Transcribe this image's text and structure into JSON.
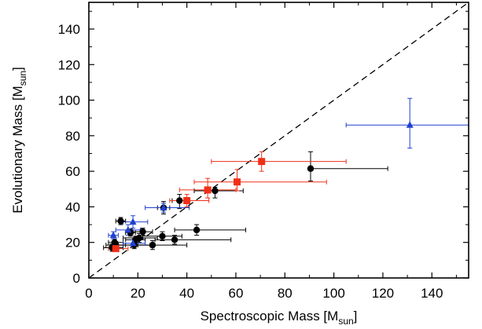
{
  "chart_data": {
    "type": "scatter",
    "xlabel": {
      "main": "Spectroscopic Mass [M",
      "sub": "sun",
      "end": "]"
    },
    "ylabel": {
      "main": "Evolutionary Mass [M",
      "sub": "sun",
      "end": "]"
    },
    "xlim": [
      0,
      155
    ],
    "ylim": [
      0,
      155
    ],
    "xticks": [
      0,
      20,
      40,
      60,
      80,
      100,
      120,
      140
    ],
    "yticks": [
      0,
      20,
      40,
      60,
      80,
      100,
      120,
      140
    ],
    "grid": false,
    "reference_line": {
      "style": "dashed",
      "color": "#000000",
      "from": [
        0,
        0
      ],
      "to": [
        155,
        155
      ]
    },
    "series": [
      {
        "marker": "circle",
        "color": "#000000",
        "points": [
          {
            "x": 90.5,
            "y": 61.5,
            "xerr": [
              90.5,
              122
            ],
            "yerr": [
              54.5,
              71
            ]
          },
          {
            "x": 51.5,
            "y": 49,
            "xerr": [
              43,
              63
            ],
            "yerr": [
              45,
              51
            ]
          },
          {
            "x": 37,
            "y": 43.5,
            "xerr": [
              34,
              40
            ],
            "yerr": [
              39,
              47
            ]
          },
          {
            "x": 30.5,
            "y": 39.5,
            "xerr": [
              28,
              33
            ],
            "yerr": [
              36,
              43
            ]
          },
          {
            "x": 44,
            "y": 27,
            "xerr": [
              35,
              64
            ],
            "yerr": [
              24,
              30
            ]
          },
          {
            "x": 30,
            "y": 23.5,
            "xerr": [
              22,
              38
            ],
            "yerr": [
              21,
              26
            ]
          },
          {
            "x": 35,
            "y": 21.5,
            "xerr": [
              27,
              58
            ],
            "yerr": [
              19,
              24
            ]
          },
          {
            "x": 20.5,
            "y": 22.5,
            "xerr": [
              14,
              28
            ],
            "yerr": [
              20,
              25
            ]
          },
          {
            "x": 22,
            "y": 26,
            "xerr": [
              18,
              26
            ],
            "yerr": [
              24,
              28
            ]
          },
          {
            "x": 26,
            "y": 18.5,
            "xerr": [
              20,
              40
            ],
            "yerr": [
              16,
              21
            ]
          },
          {
            "x": 13,
            "y": 32,
            "xerr": [
              11,
              15
            ],
            "yerr": [
              30,
              34
            ]
          },
          {
            "x": 17,
            "y": 25.5,
            "xerr": [
              15,
              19
            ],
            "yerr": [
              23.5,
              27.5
            ]
          },
          {
            "x": 19,
            "y": 21.5,
            "xerr": [
              15,
              23
            ],
            "yerr": [
              19.5,
              23.5
            ]
          },
          {
            "x": 18.5,
            "y": 18.5,
            "xerr": [
              12,
              25
            ],
            "yerr": [
              16.5,
              20.5
            ]
          },
          {
            "x": 11,
            "y": 18.5,
            "xerr": [
              7,
              15
            ],
            "yerr": [
              16.5,
              20.5
            ]
          },
          {
            "x": 9.5,
            "y": 17,
            "xerr": [
              6,
              14
            ],
            "yerr": [
              15,
              19
            ]
          },
          {
            "x": 10.5,
            "y": 20,
            "xerr": [
              8,
              14
            ],
            "yerr": [
              18,
              22
            ]
          }
        ]
      },
      {
        "marker": "square",
        "color": "#f03018",
        "points": [
          {
            "x": 70.5,
            "y": 65.5,
            "xerr": [
              50,
              105
            ],
            "yerr": [
              60,
              71
            ]
          },
          {
            "x": 60.5,
            "y": 54,
            "xerr": [
              43,
              97
            ],
            "yerr": [
              49,
              61
            ]
          },
          {
            "x": 48.5,
            "y": 49.5,
            "xerr": [
              37,
              60
            ],
            "yerr": [
              45,
              56
            ]
          },
          {
            "x": 40,
            "y": 43.5,
            "xerr": [
              33,
              49
            ],
            "yerr": [
              40,
              47
            ]
          },
          {
            "x": 11,
            "y": 16.5,
            "xerr": [
              8,
              16
            ],
            "yerr": [
              15,
              18
            ]
          }
        ]
      },
      {
        "marker": "triangle",
        "color": "#2040d0",
        "points": [
          {
            "x": 131,
            "y": 86,
            "xerr": [
              105,
              155
            ],
            "yerr": [
              73,
              101
            ]
          },
          {
            "x": 30.5,
            "y": 39.5,
            "xerr": [
              23,
              41
            ],
            "yerr": [
              37,
              42
            ]
          },
          {
            "x": 18,
            "y": 31.5,
            "xerr": [
              14,
              24
            ],
            "yerr": [
              28,
              35
            ]
          },
          {
            "x": 16,
            "y": 27,
            "xerr": [
              11,
              21
            ],
            "yerr": [
              24,
              30
            ]
          },
          {
            "x": 10,
            "y": 24,
            "xerr": [
              8,
              12
            ],
            "yerr": [
              22,
              26
            ]
          },
          {
            "x": 18,
            "y": 19.5,
            "xerr": [
              14,
              23
            ],
            "yerr": [
              17.5,
              21.5
            ]
          }
        ]
      }
    ]
  }
}
